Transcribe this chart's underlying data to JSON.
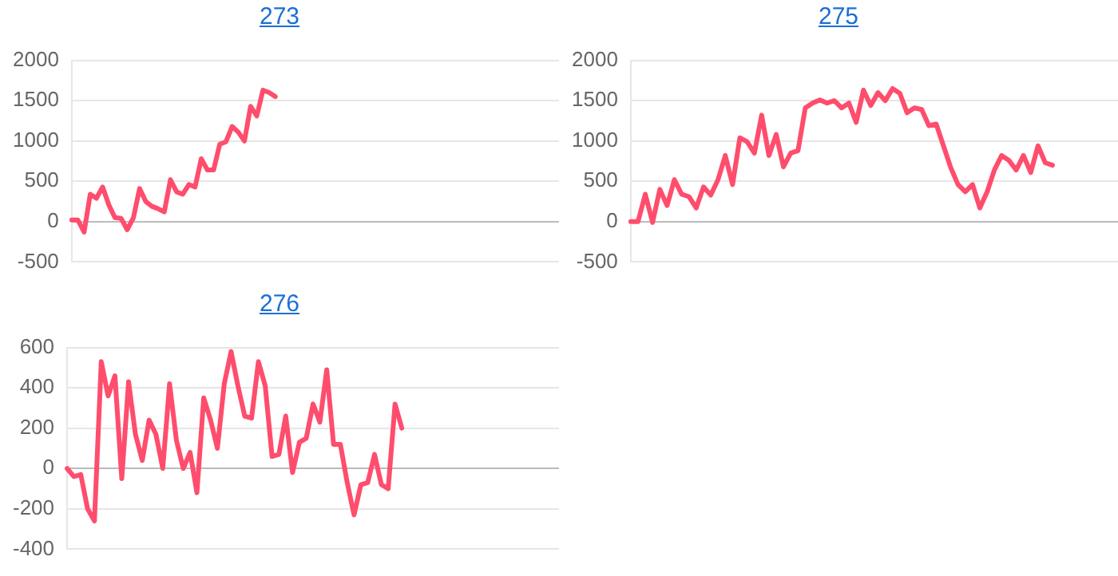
{
  "chart_data": [
    {
      "type": "line",
      "title": "273",
      "categories": [
        null,
        null,
        null,
        null,
        null,
        null,
        null,
        null,
        null,
        null,
        null,
        null,
        null,
        null,
        null,
        null,
        null,
        null,
        null,
        null,
        null,
        null,
        null,
        null,
        null,
        null,
        null,
        null,
        null,
        null,
        null,
        null,
        null,
        null,
        null,
        null,
        null,
        null,
        null,
        null,
        null,
        null,
        null,
        null,
        null,
        null,
        null,
        null,
        null,
        null,
        null,
        null,
        null,
        null,
        null,
        null,
        null,
        null,
        null,
        null,
        null,
        null,
        null,
        null,
        null,
        null,
        null,
        null,
        null,
        null,
        null,
        null,
        null,
        null,
        null,
        null,
        null,
        null,
        null,
        null
      ],
      "series": [
        {
          "color": "#ff4d6d",
          "values": [
            20,
            20,
            -130,
            340,
            290,
            430,
            210,
            50,
            40,
            -100,
            50,
            410,
            250,
            190,
            160,
            120,
            520,
            370,
            340,
            460,
            430,
            780,
            640,
            640,
            960,
            990,
            1180,
            1110,
            1000,
            1430,
            1310,
            1630,
            1600,
            1550,
            null,
            null,
            null,
            null,
            null,
            null,
            null,
            null,
            null,
            null,
            null,
            null,
            null,
            null,
            null,
            null,
            null,
            null,
            null,
            null,
            null,
            null,
            null,
            null,
            null,
            null,
            null,
            null,
            null,
            null,
            null,
            null,
            null,
            null,
            null,
            null,
            null,
            null,
            null,
            null,
            null,
            null,
            null,
            null,
            null,
            null
          ]
        }
      ],
      "ylim": [
        -500,
        2000
      ],
      "yticks": [
        -500,
        0,
        500,
        1000,
        1500,
        2000
      ],
      "grid": "y",
      "legend": false,
      "marker": "none",
      "tick_labels": "y"
    },
    {
      "type": "line",
      "title": "275",
      "categories": [
        null,
        null,
        null,
        null,
        null,
        null,
        null,
        null,
        null,
        null,
        null,
        null,
        null,
        null,
        null,
        null,
        null,
        null,
        null,
        null,
        null,
        null,
        null,
        null,
        null,
        null,
        null,
        null,
        null,
        null,
        null,
        null,
        null,
        null,
        null,
        null,
        null,
        null,
        null,
        null,
        null,
        null,
        null,
        null,
        null,
        null,
        null,
        null,
        null,
        null,
        null,
        null,
        null,
        null,
        null,
        null,
        null,
        null,
        null,
        null,
        null,
        null,
        null,
        null,
        null,
        null,
        null,
        null
      ],
      "series": [
        {
          "color": "#ff4d6d",
          "values": [
            0,
            0,
            340,
            -10,
            400,
            200,
            520,
            340,
            310,
            170,
            430,
            330,
            520,
            820,
            460,
            1040,
            990,
            850,
            1320,
            820,
            1080,
            680,
            850,
            880,
            1410,
            1470,
            1510,
            1470,
            1500,
            1410,
            1470,
            1230,
            1630,
            1440,
            1600,
            1500,
            1650,
            1590,
            1350,
            1410,
            1390,
            1190,
            1210,
            940,
            670,
            460,
            370,
            460,
            170,
            370,
            640,
            820,
            760,
            640,
            820,
            610,
            940,
            730,
            700,
            null,
            null,
            null,
            null,
            null,
            null,
            null,
            null,
            null
          ]
        }
      ],
      "ylim": [
        -500,
        2000
      ],
      "yticks": [
        -500,
        0,
        500,
        1000,
        1500,
        2000
      ],
      "grid": "y",
      "legend": false,
      "marker": "none",
      "tick_labels": "y"
    },
    {
      "type": "line",
      "title": "276",
      "categories": [
        null,
        null,
        null,
        null,
        null,
        null,
        null,
        null,
        null,
        null,
        null,
        null,
        null,
        null,
        null,
        null,
        null,
        null,
        null,
        null,
        null,
        null,
        null,
        null,
        null,
        null,
        null,
        null,
        null,
        null,
        null,
        null,
        null,
        null,
        null,
        null,
        null,
        null,
        null,
        null,
        null,
        null,
        null,
        null,
        null,
        null,
        null,
        null,
        null,
        null,
        null,
        null,
        null,
        null,
        null,
        null,
        null,
        null,
        null,
        null,
        null,
        null,
        null,
        null,
        null,
        null,
        null,
        null,
        null,
        null,
        null,
        null,
        null
      ],
      "series": [
        {
          "color": "#ff4d6d",
          "values": [
            0,
            -40,
            -30,
            -200,
            -260,
            530,
            360,
            460,
            -50,
            430,
            170,
            40,
            240,
            170,
            0,
            420,
            140,
            0,
            80,
            -120,
            350,
            240,
            100,
            420,
            580,
            410,
            260,
            250,
            530,
            410,
            60,
            70,
            260,
            -20,
            130,
            150,
            320,
            230,
            490,
            120,
            120,
            -70,
            -230,
            -80,
            -70,
            70,
            -80,
            -100,
            320,
            200,
            null,
            null,
            null,
            null,
            null,
            null,
            null,
            null,
            null,
            null,
            null,
            null,
            null,
            null,
            null,
            null,
            null,
            null,
            null,
            null,
            null,
            null,
            null
          ]
        }
      ],
      "ylim": [
        -400,
        600
      ],
      "yticks": [
        -400,
        -200,
        0,
        200,
        400,
        600
      ],
      "grid": "y",
      "legend": false,
      "marker": "none",
      "tick_labels": "y"
    }
  ]
}
